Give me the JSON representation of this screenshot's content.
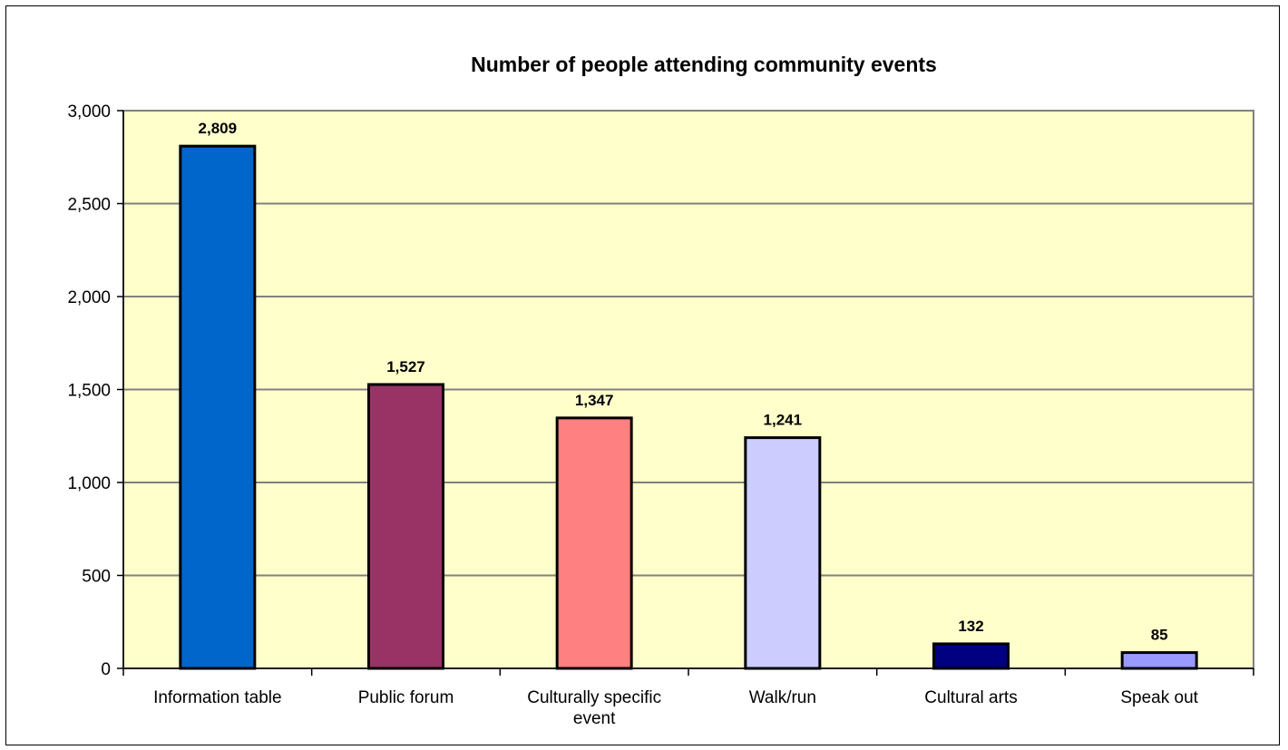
{
  "chart_data": {
    "type": "bar",
    "title": "Number of people attending community events",
    "xlabel": "",
    "ylabel": "",
    "ylim": [
      0,
      3000
    ],
    "y_ticks": [
      0,
      500,
      1000,
      1500,
      2000,
      2500,
      3000
    ],
    "y_tick_labels": [
      "0",
      "500",
      "1,000",
      "1,500",
      "2,000",
      "2,500",
      "3,000"
    ],
    "grid": true,
    "legend": "none",
    "categories": [
      [
        "Information table"
      ],
      [
        "Public forum"
      ],
      [
        "Culturally specific",
        "event"
      ],
      [
        "Walk/run"
      ],
      [
        "Cultural arts"
      ],
      [
        "Speak out"
      ]
    ],
    "values": [
      2809,
      1527,
      1347,
      1241,
      132,
      85
    ],
    "value_labels": [
      "2,809",
      "1,527",
      "1,347",
      "1,241",
      "132",
      "85"
    ],
    "bar_colors": [
      "#0066CC",
      "#993366",
      "#FF8080",
      "#CCCCFF",
      "#000080",
      "#9999FF"
    ],
    "plot_background": "#FFFFCC",
    "gridline_color": "#808080"
  }
}
